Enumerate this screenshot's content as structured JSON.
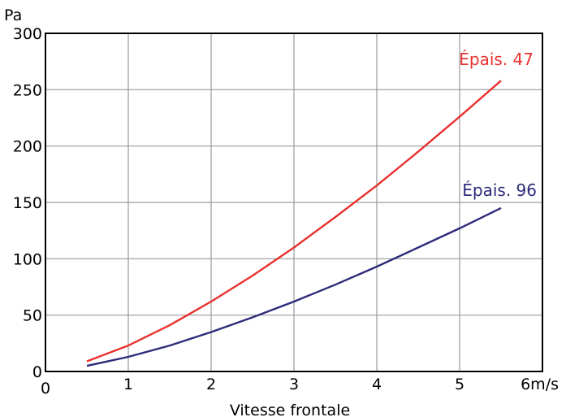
{
  "chart_data": {
    "type": "line",
    "ylabel": "Pa",
    "xlabel": "Vitesse frontale",
    "xlim": [
      0,
      6
    ],
    "ylim": [
      0,
      300
    ],
    "x_ticks": [
      "0",
      "1",
      "2",
      "3",
      "4",
      "5",
      "6m/s"
    ],
    "y_ticks": [
      "0",
      "50",
      "100",
      "150",
      "200",
      "250",
      "300"
    ],
    "grid": true,
    "series": [
      {
        "name": "Épais. 47",
        "color": "#e8312f",
        "x": [
          0.5,
          1,
          1.5,
          2,
          2.5,
          3,
          3.5,
          4,
          4.5,
          5,
          5.5
        ],
        "y": [
          9,
          23,
          41,
          62,
          85,
          110,
          137,
          165,
          195,
          226,
          258
        ]
      },
      {
        "name": "Épais. 96",
        "color": "#2e2b7a",
        "x": [
          0.5,
          1,
          1.5,
          2,
          2.5,
          3,
          3.5,
          4,
          4.5,
          5,
          5.5
        ],
        "y": [
          5,
          13,
          23,
          35,
          48,
          62,
          77,
          93,
          110,
          127,
          145
        ]
      }
    ]
  }
}
